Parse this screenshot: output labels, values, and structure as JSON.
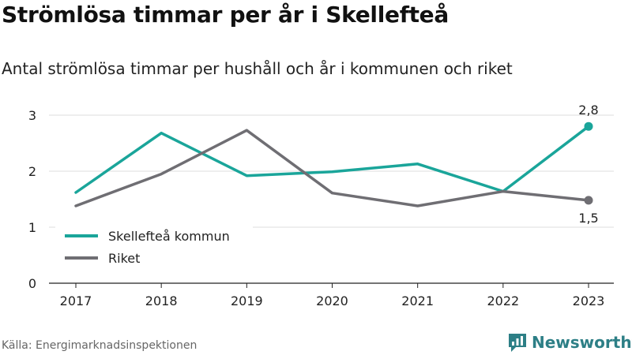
{
  "title": "Strömlösa timmar per år i Skellefteå",
  "subtitle": "Antal strömlösa timmar per hushåll och år i kommunen och riket",
  "source": "Källa: Energimarknadsinspektionen",
  "brand": {
    "name": "Newsworthy",
    "icon": "newsworthy-logo-icon",
    "color": "#2d7f86"
  },
  "chart_data": {
    "type": "line",
    "x": [
      "2017",
      "2018",
      "2019",
      "2020",
      "2021",
      "2022",
      "2023"
    ],
    "ylim": [
      0,
      3.2
    ],
    "yticks": [
      0,
      1,
      2,
      3
    ],
    "grid": true,
    "legend_position": "bottom-left",
    "series": [
      {
        "name": "Skellefteå kommun",
        "color": "#1aa59a",
        "values": [
          1.62,
          2.68,
          1.92,
          1.99,
          2.13,
          1.64,
          2.8
        ],
        "end_label": "2,8",
        "end_label_position": "above"
      },
      {
        "name": "Riket",
        "color": "#6f6e73",
        "values": [
          1.38,
          1.95,
          2.73,
          1.61,
          1.38,
          1.64,
          1.48
        ],
        "end_label": "1,5",
        "end_label_position": "below"
      }
    ]
  }
}
